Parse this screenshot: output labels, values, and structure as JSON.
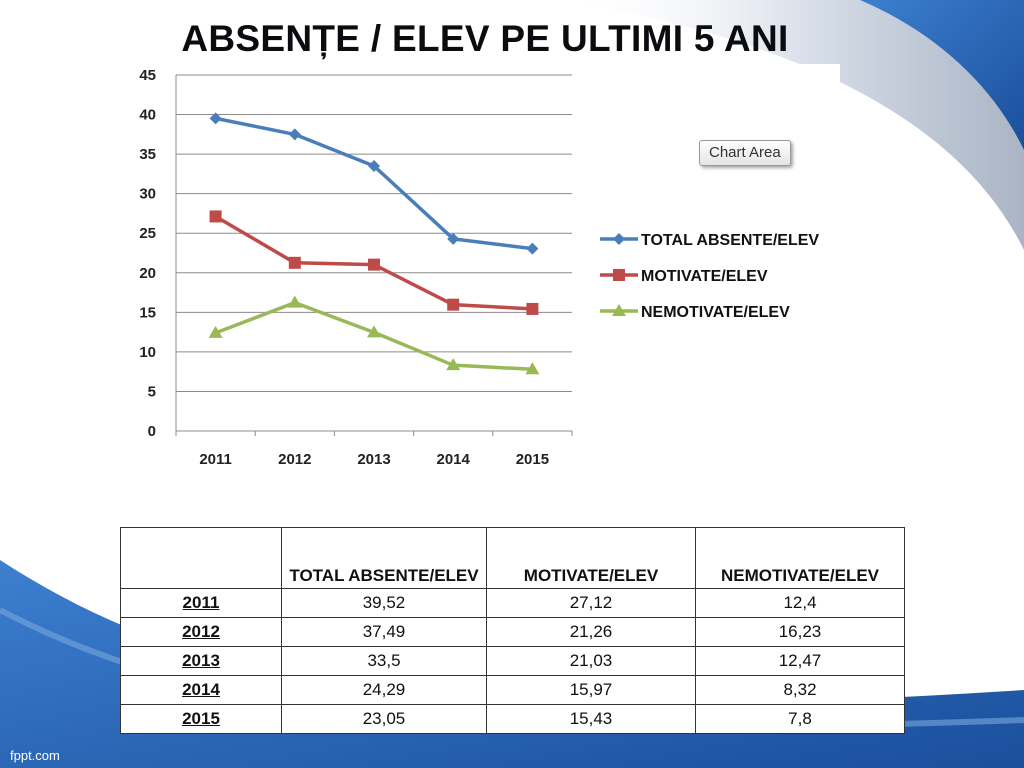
{
  "slide": {
    "title": "ABSENȚE / ELEV PE ULTIMI 5 ANI",
    "footer": "fppt.com"
  },
  "colors": {
    "total": "#4a7ebb",
    "motivate": "#be4b48",
    "nemotivate": "#98b954",
    "background_blue": "#1f5dad"
  },
  "chart_data": {
    "type": "line",
    "categories": [
      "2011",
      "2012",
      "2013",
      "2014",
      "2015"
    ],
    "series": [
      {
        "name": "TOTAL ABSENTE/ELEV",
        "values": [
          39.52,
          37.49,
          33.5,
          24.29,
          23.05
        ],
        "marker": "diamond",
        "color": "#4a7ebb"
      },
      {
        "name": "MOTIVATE/ELEV",
        "values": [
          27.12,
          21.26,
          21.03,
          15.97,
          15.43
        ],
        "marker": "square",
        "color": "#be4b48"
      },
      {
        "name": "NEMOTIVATE/ELEV",
        "values": [
          12.4,
          16.23,
          12.47,
          8.32,
          7.8
        ],
        "marker": "triangle",
        "color": "#98b954"
      }
    ],
    "yticks": [
      "0",
      "5",
      "10",
      "15",
      "20",
      "25",
      "30",
      "35",
      "40",
      "45"
    ],
    "ylim": [
      0,
      45
    ],
    "grid": true,
    "legend": "right",
    "tooltip": "Chart Area"
  },
  "table": {
    "headers": [
      "",
      "TOTAL ABSENTE/ELEV",
      "MOTIVATE/ELEV",
      "NEMOTIVATE/ELEV"
    ],
    "rows": [
      [
        "2011",
        "39,52",
        "27,12",
        "12,4"
      ],
      [
        "2012",
        "37,49",
        "21,26",
        "16,23"
      ],
      [
        "2013",
        "33,5",
        "21,03",
        "12,47"
      ],
      [
        "2014",
        "24,29",
        "15,97",
        "8,32"
      ],
      [
        "2015",
        "23,05",
        "15,43",
        "7,8"
      ]
    ]
  }
}
